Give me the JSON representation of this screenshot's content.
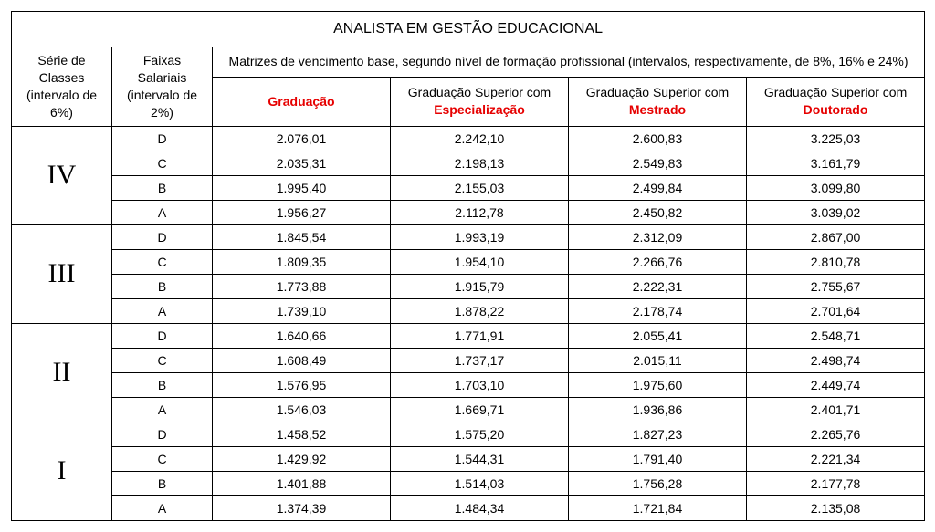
{
  "title": "ANALISTA EM GESTÃO EDUCACIONAL",
  "header_serie": "Série de Classes (intervalo de 6%)",
  "header_faixas": "Faixas Salariais (intervalo de 2%)",
  "header_matrix": "Matrizes de vencimento base, segundo nível de formação profissional (intervalos, respectivamente, de 8%, 16% e 24%)",
  "col_graduacao": "Graduação",
  "col_esp_pre": "Graduação Superior com ",
  "col_esp_red": "Especialização",
  "col_mes_pre": "Graduação Superior com ",
  "col_mes_red": "Mestrado",
  "col_dou_pre": "Graduação Superior com ",
  "col_dou_red": "Doutorado",
  "series": {
    "IV": {
      "label": "IV",
      "D": {
        "f": "D",
        "g": "2.076,01",
        "e": "2.242,10",
        "m": "2.600,83",
        "d": "3.225,03"
      },
      "C": {
        "f": "C",
        "g": "2.035,31",
        "e": "2.198,13",
        "m": "2.549,83",
        "d": "3.161,79"
      },
      "B": {
        "f": "B",
        "g": "1.995,40",
        "e": "2.155,03",
        "m": "2.499,84",
        "d": "3.099,80"
      },
      "A": {
        "f": "A",
        "g": "1.956,27",
        "e": "2.112,78",
        "m": "2.450,82",
        "d": "3.039,02"
      }
    },
    "III": {
      "label": "III",
      "D": {
        "f": "D",
        "g": "1.845,54",
        "e": "1.993,19",
        "m": "2.312,09",
        "d": "2.867,00"
      },
      "C": {
        "f": "C",
        "g": "1.809,35",
        "e": "1.954,10",
        "m": "2.266,76",
        "d": "2.810,78"
      },
      "B": {
        "f": "B",
        "g": "1.773,88",
        "e": "1.915,79",
        "m": "2.222,31",
        "d": "2.755,67"
      },
      "A": {
        "f": "A",
        "g": "1.739,10",
        "e": "1.878,22",
        "m": "2.178,74",
        "d": "2.701,64"
      }
    },
    "II": {
      "label": "II",
      "D": {
        "f": "D",
        "g": "1.640,66",
        "e": "1.771,91",
        "m": "2.055,41",
        "d": "2.548,71"
      },
      "C": {
        "f": "C",
        "g": "1.608,49",
        "e": "1.737,17",
        "m": "2.015,11",
        "d": "2.498,74"
      },
      "B": {
        "f": "B",
        "g": "1.576,95",
        "e": "1.703,10",
        "m": "1.975,60",
        "d": "2.449,74"
      },
      "A": {
        "f": "A",
        "g": "1.546,03",
        "e": "1.669,71",
        "m": "1.936,86",
        "d": "2.401,71"
      }
    },
    "I": {
      "label": "I",
      "D": {
        "f": "D",
        "g": "1.458,52",
        "e": "1.575,20",
        "m": "1.827,23",
        "d": "2.265,76"
      },
      "C": {
        "f": "C",
        "g": "1.429,92",
        "e": "1.544,31",
        "m": "1.791,40",
        "d": "2.221,34"
      },
      "B": {
        "f": "B",
        "g": "1.401,88",
        "e": "1.514,03",
        "m": "1.756,28",
        "d": "2.177,78"
      },
      "A": {
        "f": "A",
        "g": "1.374,39",
        "e": "1.484,34",
        "m": "1.721,84",
        "d": "2.135,08"
      }
    }
  }
}
